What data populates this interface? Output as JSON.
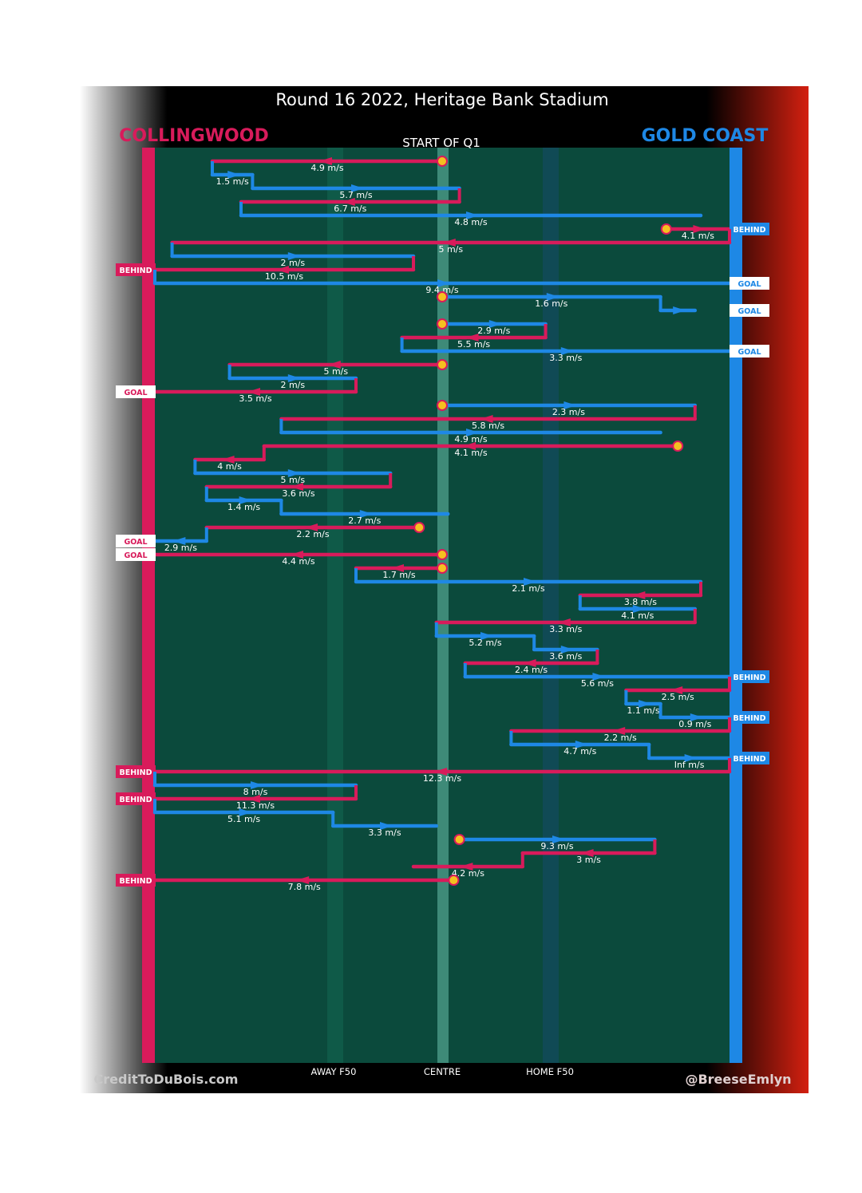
{
  "title": "Round 16 2022, Heritage Bank Stadium",
  "subtitle": "START OF Q1",
  "teams": {
    "left": {
      "name": "COLLINGWOOD",
      "color": "#d81b5b"
    },
    "right": {
      "name": "GOLD COAST",
      "color": "#1e88e5"
    }
  },
  "axis_labels": [
    "AWAY F50",
    "CENTRE",
    "HOME F50"
  ],
  "credits": {
    "left": "CreditToDuBois.com",
    "right": "@BreeseEmlyn"
  },
  "colors": {
    "field": "#0b4a3c",
    "marker_fill": "#f5c020",
    "marker_edge": "#d81b5b",
    "background_left": "#ffffff",
    "background_right": "#d42010"
  },
  "chart_data": {
    "type": "line",
    "note_scale": "x axis is field position from COLLINGWOOD goal (0) to GOLD COAST goal (1)",
    "xlim": [
      0,
      1
    ],
    "gridlines": {
      "AWAY F50": 0.31,
      "CENTRE": 0.5,
      "HOME F50": 0.69
    },
    "chains": [
      {
        "team": "collingwood",
        "speed": "4.9 m/s",
        "from": 0.5,
        "to": 0.1
      },
      {
        "team": "gold_coast",
        "speed": "1.5 m/s",
        "from": 0.1,
        "to": 0.17
      },
      {
        "team": "gold_coast",
        "speed": "5.7 m/s",
        "from": 0.17,
        "to": 0.53
      },
      {
        "team": "collingwood",
        "speed": "6.7 m/s",
        "from": 0.53,
        "to": 0.15
      },
      {
        "team": "gold_coast",
        "speed": "4.8 m/s",
        "from": 0.15,
        "to": 0.95
      },
      {
        "team": "collingwood",
        "speed": "4.1 m/s",
        "from": 0.89,
        "to": 1.0,
        "result": "BEHIND",
        "result_team": "gold_coast"
      },
      {
        "team": "collingwood",
        "speed": "5 m/s",
        "from": 1.0,
        "to": 0.03
      },
      {
        "team": "gold_coast",
        "speed": "2 m/s",
        "from": 0.03,
        "to": 0.45
      },
      {
        "team": "collingwood",
        "speed": "10.5 m/s",
        "from": 0.45,
        "to": 0.0,
        "result": "BEHIND",
        "result_team": "collingwood"
      },
      {
        "team": "gold_coast",
        "speed": "9.4 m/s",
        "from": 0.0,
        "to": 1.0,
        "result": "GOAL",
        "result_team": "gold_coast"
      },
      {
        "team": "gold_coast",
        "speed": "1.6 m/s",
        "from": 0.5,
        "to": 0.88
      },
      {
        "team": "gold_coast",
        "speed": "",
        "from": 0.88,
        "to": 0.94,
        "result": "GOAL",
        "result_team": "gold_coast"
      },
      {
        "team": "gold_coast",
        "speed": "2.9 m/s",
        "from": 0.5,
        "to": 0.68
      },
      {
        "team": "collingwood",
        "speed": "5.5 m/s",
        "from": 0.68,
        "to": 0.43
      },
      {
        "team": "gold_coast",
        "speed": "3.3 m/s",
        "from": 0.43,
        "to": 1.0,
        "result": "GOAL",
        "result_team": "gold_coast"
      },
      {
        "team": "collingwood",
        "speed": "5 m/s",
        "from": 0.5,
        "to": 0.13
      },
      {
        "team": "gold_coast",
        "speed": "2 m/s",
        "from": 0.13,
        "to": 0.35
      },
      {
        "team": "collingwood",
        "speed": "3.5 m/s",
        "from": 0.35,
        "to": 0.0,
        "result": "GOAL",
        "result_team": "collingwood"
      },
      {
        "team": "gold_coast",
        "speed": "2.3 m/s",
        "from": 0.5,
        "to": 0.94
      },
      {
        "team": "collingwood",
        "speed": "5.8 m/s",
        "from": 0.94,
        "to": 0.22
      },
      {
        "team": "gold_coast",
        "speed": "4.9 m/s",
        "from": 0.22,
        "to": 0.88
      },
      {
        "team": "collingwood",
        "speed": "4.1 m/s",
        "from": 0.91,
        "to": 0.19
      },
      {
        "team": "collingwood",
        "speed": "4 m/s",
        "from": 0.19,
        "to": 0.07
      },
      {
        "team": "gold_coast",
        "speed": "5 m/s",
        "from": 0.07,
        "to": 0.41
      },
      {
        "team": "collingwood",
        "speed": "3.6 m/s",
        "from": 0.41,
        "to": 0.09
      },
      {
        "team": "gold_coast",
        "speed": "1.4 m/s",
        "from": 0.09,
        "to": 0.22
      },
      {
        "team": "gold_coast",
        "speed": "2.7 m/s",
        "from": 0.22,
        "to": 0.51
      },
      {
        "team": "collingwood",
        "speed": "2.2 m/s",
        "from": 0.46,
        "to": 0.09
      },
      {
        "team": "gold_coast",
        "speed": "2.9 m/s",
        "from": 0.09,
        "to": 0.0,
        "result": "GOAL",
        "result_team": "collingwood"
      },
      {
        "team": "collingwood",
        "speed": "4.4 m/s",
        "from": 0.5,
        "to": 0.0,
        "result": "GOAL",
        "result_team": "collingwood"
      },
      {
        "team": "collingwood",
        "speed": "1.7 m/s",
        "from": 0.5,
        "to": 0.35
      },
      {
        "team": "gold_coast",
        "speed": "2.1 m/s",
        "from": 0.35,
        "to": 0.95
      },
      {
        "team": "collingwood",
        "speed": "3.8 m/s",
        "from": 0.95,
        "to": 0.74
      },
      {
        "team": "gold_coast",
        "speed": "4.1 m/s",
        "from": 0.74,
        "to": 0.94
      },
      {
        "team": "collingwood",
        "speed": "3.3 m/s",
        "from": 0.94,
        "to": 0.49
      },
      {
        "team": "gold_coast",
        "speed": "5.2 m/s",
        "from": 0.49,
        "to": 0.66
      },
      {
        "team": "gold_coast",
        "speed": "3.6 m/s",
        "from": 0.66,
        "to": 0.77
      },
      {
        "team": "collingwood",
        "speed": "2.4 m/s",
        "from": 0.77,
        "to": 0.54
      },
      {
        "team": "gold_coast",
        "speed": "5.6 m/s",
        "from": 0.54,
        "to": 1.0,
        "result": "BEHIND",
        "result_team": "gold_coast"
      },
      {
        "team": "collingwood",
        "speed": "2.5 m/s",
        "from": 1.0,
        "to": 0.82
      },
      {
        "team": "gold_coast",
        "speed": "1.1 m/s",
        "from": 0.82,
        "to": 0.88
      },
      {
        "team": "gold_coast",
        "speed": "0.9 m/s",
        "from": 0.88,
        "to": 1.0,
        "result": "BEHIND",
        "result_team": "gold_coast"
      },
      {
        "team": "collingwood",
        "speed": "2.2 m/s",
        "from": 1.0,
        "to": 0.62
      },
      {
        "team": "gold_coast",
        "speed": "4.7 m/s",
        "from": 0.62,
        "to": 0.86
      },
      {
        "team": "gold_coast",
        "speed": "Inf m/s",
        "from": 0.86,
        "to": 1.0,
        "result": "BEHIND",
        "result_team": "gold_coast"
      },
      {
        "team": "collingwood",
        "speed": "12.3 m/s",
        "from": 1.0,
        "to": 0.0,
        "result": "BEHIND",
        "result_team": "collingwood"
      },
      {
        "team": "gold_coast",
        "speed": "8 m/s",
        "from": 0.0,
        "to": 0.35
      },
      {
        "team": "collingwood",
        "speed": "11.3 m/s",
        "from": 0.35,
        "to": 0.0,
        "result": "BEHIND",
        "result_team": "collingwood"
      },
      {
        "team": "gold_coast",
        "speed": "5.1 m/s",
        "from": 0.0,
        "to": 0.31
      },
      {
        "team": "gold_coast",
        "speed": "3.3 m/s",
        "from": 0.31,
        "to": 0.49
      },
      {
        "team": "gold_coast",
        "speed": "9.3 m/s",
        "from": 0.53,
        "to": 0.87
      },
      {
        "team": "collingwood",
        "speed": "3 m/s",
        "from": 0.87,
        "to": 0.64
      },
      {
        "team": "collingwood",
        "speed": "4.2 m/s",
        "from": 0.64,
        "to": 0.45
      },
      {
        "team": "collingwood",
        "speed": "7.8 m/s",
        "from": 0.52,
        "to": 0.0,
        "result": "BEHIND",
        "result_team": "collingwood"
      }
    ]
  }
}
